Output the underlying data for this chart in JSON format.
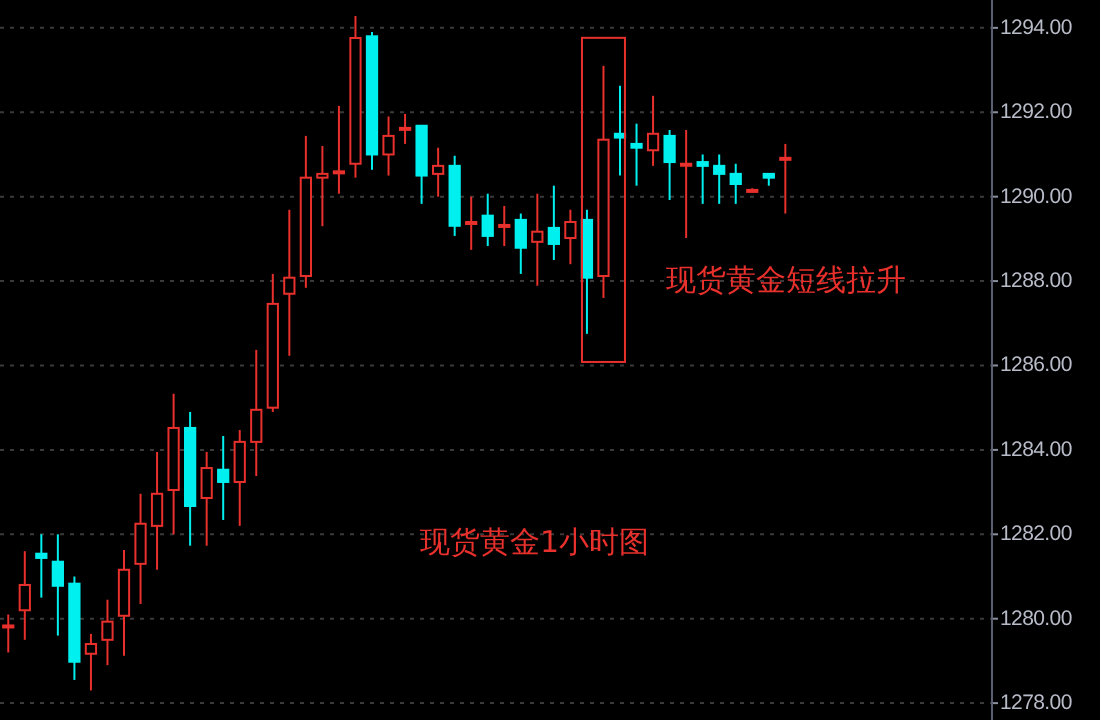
{
  "chart_data": {
    "type": "candlestick",
    "categories": [
      null,
      null,
      null,
      null,
      null,
      null,
      null,
      null,
      null,
      null,
      null,
      null,
      null,
      null,
      null,
      null,
      null,
      null,
      null,
      null,
      null,
      null,
      null,
      null,
      null,
      null,
      null,
      null,
      null,
      null,
      null,
      null,
      null,
      null,
      null,
      null,
      null,
      null,
      null,
      null,
      null,
      null,
      null,
      null,
      null,
      null,
      null,
      null,
      null,
      null,
      null,
      null,
      null,
      null,
      null,
      null,
      null,
      null,
      null,
      null
    ],
    "ohlc": [
      [
        1279.82,
        1280.1,
        1279.2,
        1279.84
      ],
      [
        1280.2,
        1281.6,
        1279.5,
        1280.8
      ],
      [
        1281.54,
        1282.0,
        1280.5,
        1281.44
      ],
      [
        1281.35,
        1282.0,
        1279.6,
        1280.78
      ],
      [
        1280.83,
        1281.0,
        1278.55,
        1278.98
      ],
      [
        1279.17,
        1279.64,
        1278.3,
        1279.4
      ],
      [
        1279.5,
        1280.45,
        1278.9,
        1279.93
      ],
      [
        1280.07,
        1281.63,
        1279.12,
        1281.16
      ],
      [
        1281.3,
        1282.96,
        1280.35,
        1282.25
      ],
      [
        1282.2,
        1283.95,
        1281.16,
        1282.96
      ],
      [
        1283.05,
        1285.33,
        1282.0,
        1284.52
      ],
      [
        1284.52,
        1284.9,
        1281.73,
        1282.67
      ],
      [
        1282.86,
        1283.95,
        1281.73,
        1283.57
      ],
      [
        1283.53,
        1284.33,
        1282.34,
        1283.24
      ],
      [
        1283.24,
        1284.47,
        1282.2,
        1284.19
      ],
      [
        1284.19,
        1286.37,
        1283.38,
        1284.95
      ],
      [
        1285.0,
        1288.17,
        1284.9,
        1287.46
      ],
      [
        1287.7,
        1289.69,
        1286.23,
        1288.08
      ],
      [
        1288.12,
        1291.44,
        1287.84,
        1290.45
      ],
      [
        1290.45,
        1291.2,
        1289.3,
        1290.54
      ],
      [
        1290.58,
        1292.15,
        1290.07,
        1290.6
      ],
      [
        1290.78,
        1294.28,
        1290.45,
        1293.76
      ],
      [
        1293.8,
        1293.9,
        1290.64,
        1291.0
      ],
      [
        1291.0,
        1291.9,
        1290.5,
        1291.44
      ],
      [
        1291.6,
        1291.96,
        1291.25,
        1291.63
      ],
      [
        1291.68,
        1291.7,
        1289.83,
        1290.5
      ],
      [
        1290.54,
        1291.16,
        1290.0,
        1290.73
      ],
      [
        1290.73,
        1290.97,
        1289.07,
        1289.31
      ],
      [
        1289.38,
        1290.0,
        1288.74,
        1289.4
      ],
      [
        1289.55,
        1290.07,
        1288.83,
        1289.07
      ],
      [
        1289.3,
        1289.78,
        1288.83,
        1289.33
      ],
      [
        1289.45,
        1289.6,
        1288.17,
        1288.79
      ],
      [
        1288.93,
        1290.07,
        1287.89,
        1289.17
      ],
      [
        1289.26,
        1290.26,
        1288.5,
        1288.88
      ],
      [
        1289.02,
        1289.69,
        1288.4,
        1289.4
      ],
      [
        1289.45,
        1289.69,
        1286.75,
        1288.08
      ],
      [
        1288.12,
        1293.1,
        1287.6,
        1291.35
      ],
      [
        1291.49,
        1292.63,
        1290.5,
        1291.4
      ],
      [
        1291.25,
        1291.73,
        1290.26,
        1291.16
      ],
      [
        1291.1,
        1292.39,
        1290.73,
        1291.49
      ],
      [
        1291.44,
        1291.58,
        1289.92,
        1290.82
      ],
      [
        1290.75,
        1291.58,
        1289.02,
        1290.78
      ],
      [
        1290.82,
        1291.0,
        1289.83,
        1290.73
      ],
      [
        1290.73,
        1291.0,
        1289.83,
        1290.54
      ],
      [
        1290.54,
        1290.78,
        1289.83,
        1290.3
      ],
      [
        1290.14,
        1290.2,
        1290.1,
        1290.16
      ],
      [
        1290.54,
        1290.54,
        1290.26,
        1290.45
      ],
      [
        1290.9,
        1291.25,
        1289.6,
        1290.92
      ],
      null,
      null,
      null,
      null,
      null,
      null,
      null,
      null,
      null,
      null,
      null,
      null
    ],
    "colors": [
      "#e8302c",
      "#e8302c",
      "#00f0f0",
      "#00f0f0",
      "#00f0f0",
      "#e8302c",
      "#e8302c",
      "#e8302c",
      "#e8302c",
      "#e8302c",
      "#e8302c",
      "#00f0f0",
      "#e8302c",
      "#00f0f0",
      "#e8302c",
      "#e8302c",
      "#e8302c",
      "#e8302c",
      "#e8302c",
      "#e8302c",
      "#e8302c",
      "#e8302c",
      "#00f0f0",
      "#e8302c",
      "#e8302c",
      "#00f0f0",
      "#e8302c",
      "#00f0f0",
      "#e8302c",
      "#00f0f0",
      "#e8302c",
      "#00f0f0",
      "#e8302c",
      "#00f0f0",
      "#e8302c",
      "#00f0f0",
      "#e8302c",
      "#00f0f0",
      "#00f0f0",
      "#e8302c",
      "#00f0f0",
      "#e8302c",
      "#00f0f0",
      "#00f0f0",
      "#00f0f0",
      "#e8302c",
      "#00f0f0",
      "#e8302c",
      null,
      null,
      null,
      null,
      null,
      null,
      null,
      null,
      null,
      null,
      null,
      null
    ],
    "ylim": [
      1277.6,
      1294.66
    ],
    "yticks": [
      {
        "value": 1278,
        "label": "1278.00"
      },
      {
        "value": 1280,
        "label": "1280.00"
      },
      {
        "value": 1282,
        "label": "1282.00"
      },
      {
        "value": 1284,
        "label": "1284.00"
      },
      {
        "value": 1286,
        "label": "1286.00"
      },
      {
        "value": 1288,
        "label": "1288.00"
      },
      {
        "value": 1290,
        "label": "1290.00"
      },
      {
        "value": 1292,
        "label": "1292.00"
      },
      {
        "value": 1294,
        "label": "1294.00"
      }
    ],
    "grid": "y",
    "tick_labels": "y",
    "annotations": [
      "现货黄金短线拉升",
      "现货黄金1小时图"
    ]
  }
}
